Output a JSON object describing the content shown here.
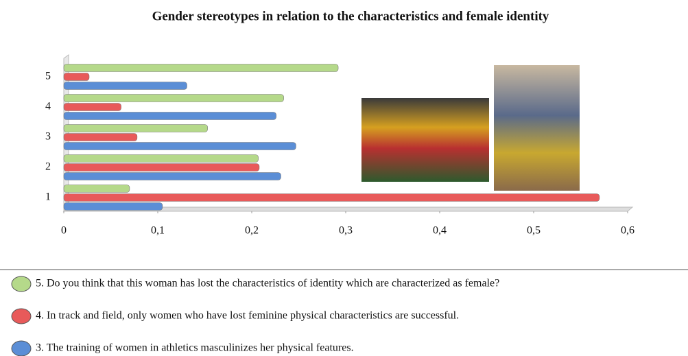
{
  "chart_data": {
    "type": "bar",
    "orientation": "horizontal",
    "title": "Gender stereotypes in relation to the characteristics  and female identity",
    "categories": [
      "1",
      "2",
      "3",
      "4",
      "5"
    ],
    "series": [
      {
        "name": "5. Do you think that this woman has lost the characteristics of identity which are characterized as  female?",
        "color": "#b5d98a",
        "values": [
          0.07,
          0.207,
          0.153,
          0.234,
          0.292
        ]
      },
      {
        "name": "4. In track and field, only women who have lost feminine physical characteristics are successful.",
        "color": "#e85a5a",
        "values": [
          0.57,
          0.208,
          0.078,
          0.061,
          0.027
        ]
      },
      {
        "name": "3.  The training of women in athletics masculinizes her physical features.",
        "color": "#5b8ed6",
        "values": [
          0.105,
          0.231,
          0.247,
          0.226,
          0.131
        ]
      }
    ],
    "xlim": [
      0,
      0.6
    ],
    "xticks": [
      0,
      {
        "value": 0.1,
        "label": "0,1"
      },
      {
        "value": 0.2,
        "label": "0,2"
      },
      {
        "value": 0.3,
        "label": "0,3"
      },
      {
        "value": 0.4,
        "label": "0,4"
      },
      {
        "value": 0.5,
        "label": "0,5"
      },
      {
        "value": 0.6,
        "label": "0,6"
      }
    ],
    "grid": false
  }
}
